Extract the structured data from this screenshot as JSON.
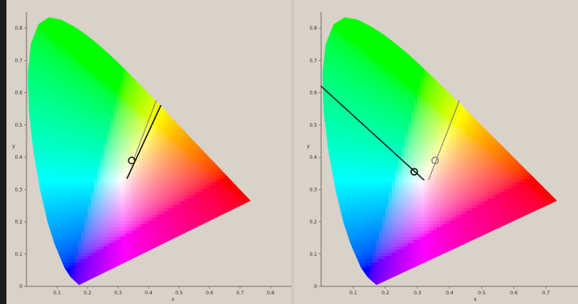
{
  "diagrams": [
    {
      "id": "left",
      "x_label": "x",
      "y_label": "y",
      "x_ticks": [
        "0.1",
        "0.2",
        "0.3",
        "0.4",
        "0.5",
        "0.6",
        "0.7",
        "0.8"
      ],
      "y_ticks": [
        "0",
        "0.1",
        "0.2",
        "0.3",
        "0.4",
        "0.5",
        "0.6",
        "0.7",
        "0.8"
      ],
      "x_range": [
        0,
        0.9
      ],
      "y_range": [
        0,
        0.85
      ],
      "circles": [
        {
          "x": 0.345,
          "y": 0.39,
          "color": "#222222"
        }
      ],
      "lines": [
        {
          "from": [
            0.33,
            0.335
          ],
          "to": [
            0.44,
            0.56
          ],
          "color": "#111111",
          "width": 1.6
        },
        {
          "from": [
            0.35,
            0.39
          ],
          "to": [
            0.425,
            0.575
          ],
          "color": "#777777",
          "width": 1
        }
      ]
    },
    {
      "id": "right",
      "x_label": "x",
      "y_label": "y",
      "x_ticks": [
        "0.1",
        "0.2",
        "0.3",
        "0.4",
        "0.5",
        "0.6",
        "0.7"
      ],
      "y_ticks": [
        "0",
        "0.1",
        "0.2",
        "0.3",
        "0.4",
        "0.5",
        "0.6",
        "0.7",
        "0.8"
      ],
      "x_range": [
        0,
        0.8
      ],
      "y_range": [
        0,
        0.85
      ],
      "circles": [
        {
          "x": 0.29,
          "y": 0.355,
          "color": "#111111"
        },
        {
          "x": 0.355,
          "y": 0.39,
          "color": "#888888"
        }
      ],
      "lines": [
        {
          "from": [
            0.0,
            0.62
          ],
          "to": [
            0.32,
            0.33
          ],
          "color": "#1a2a2a",
          "width": 1.6
        },
        {
          "from": [
            0.335,
            0.33
          ],
          "to": [
            0.43,
            0.575
          ],
          "color": "#777777",
          "width": 1
        }
      ]
    }
  ],
  "colors": {
    "background": "#d8d2c8",
    "axis": "#555555"
  }
}
